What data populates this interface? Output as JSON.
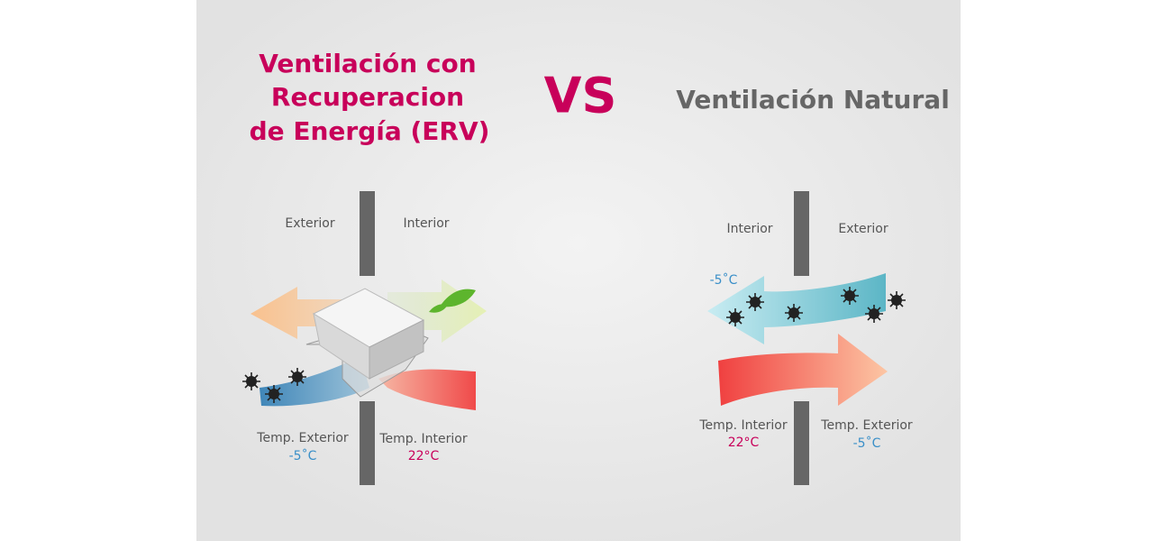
{
  "erv": {
    "title_lines": [
      "Ventilación con",
      "Recuperacion",
      "de Energía (ERV)"
    ],
    "exterior_label": "Exterior",
    "interior_label": "Interior",
    "temp_exterior_label": "Temp. Exterior",
    "temp_exterior_value": "-5˚C",
    "temp_interior_label": "Temp. Interior",
    "temp_interior_value": "22°C"
  },
  "vs": "VS",
  "natural": {
    "title": "Ventilación Natural",
    "interior_label": "Interior",
    "exterior_label": "Exterior",
    "incoming_temp": "-5˚C",
    "temp_interior_label": "Temp. Interior",
    "temp_interior_value": "22°C",
    "temp_exterior_label": "Temp. Exterior",
    "temp_exterior_value": "-5˚C"
  }
}
